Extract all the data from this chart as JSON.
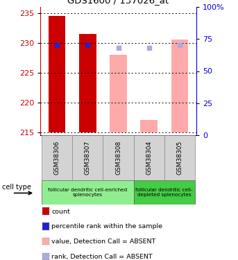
{
  "title": "GDS1600 / 137026_at",
  "samples": [
    "GSM38306",
    "GSM38307",
    "GSM38308",
    "GSM38304",
    "GSM38305"
  ],
  "bar_values": [
    234.5,
    231.5,
    228.0,
    217.0,
    230.5
  ],
  "bar_colors": [
    "#cc0000",
    "#cc0000",
    "#ffaaaa",
    "#ffaaaa",
    "#ffaaaa"
  ],
  "rank_values": [
    229.6,
    229.6,
    229.1,
    229.1,
    229.6
  ],
  "rank_colors": [
    "#2222cc",
    "#2222cc",
    "#aaaadd",
    "#aaaadd",
    "#aaaadd"
  ],
  "ylim_left": [
    214.5,
    236.0
  ],
  "ylim_right": [
    0,
    100
  ],
  "yticks_left": [
    215,
    220,
    225,
    230,
    235
  ],
  "yticks_right": [
    0,
    25,
    50,
    75,
    100
  ],
  "ytick_labels_right": [
    "0",
    "25",
    "50",
    "75",
    "100%"
  ],
  "bar_width": 0.55,
  "legend_items": [
    {
      "label": "count",
      "color": "#cc0000"
    },
    {
      "label": "percentile rank within the sample",
      "color": "#2222cc"
    },
    {
      "label": "value, Detection Call = ABSENT",
      "color": "#ffaaaa"
    },
    {
      "label": "rank, Detection Call = ABSENT",
      "color": "#aaaadd"
    }
  ],
  "cell_type_label": "cell type",
  "background_color": "#ffffff",
  "plot_bg_color": "#ffffff",
  "left_axis_color": "#cc0000",
  "right_axis_color": "#0000cc",
  "rank_square_size": 18,
  "base_value": 215.0,
  "group1_indices": [
    0,
    1,
    2
  ],
  "group1_label": "follicular dendritic cell-enriched\nsplenocytes",
  "group1_color": "#90ee90",
  "group2_indices": [
    3,
    4
  ],
  "group2_label": "follicular dendritic cell-\ndepleted splenocytes",
  "group2_color": "#44cc44"
}
